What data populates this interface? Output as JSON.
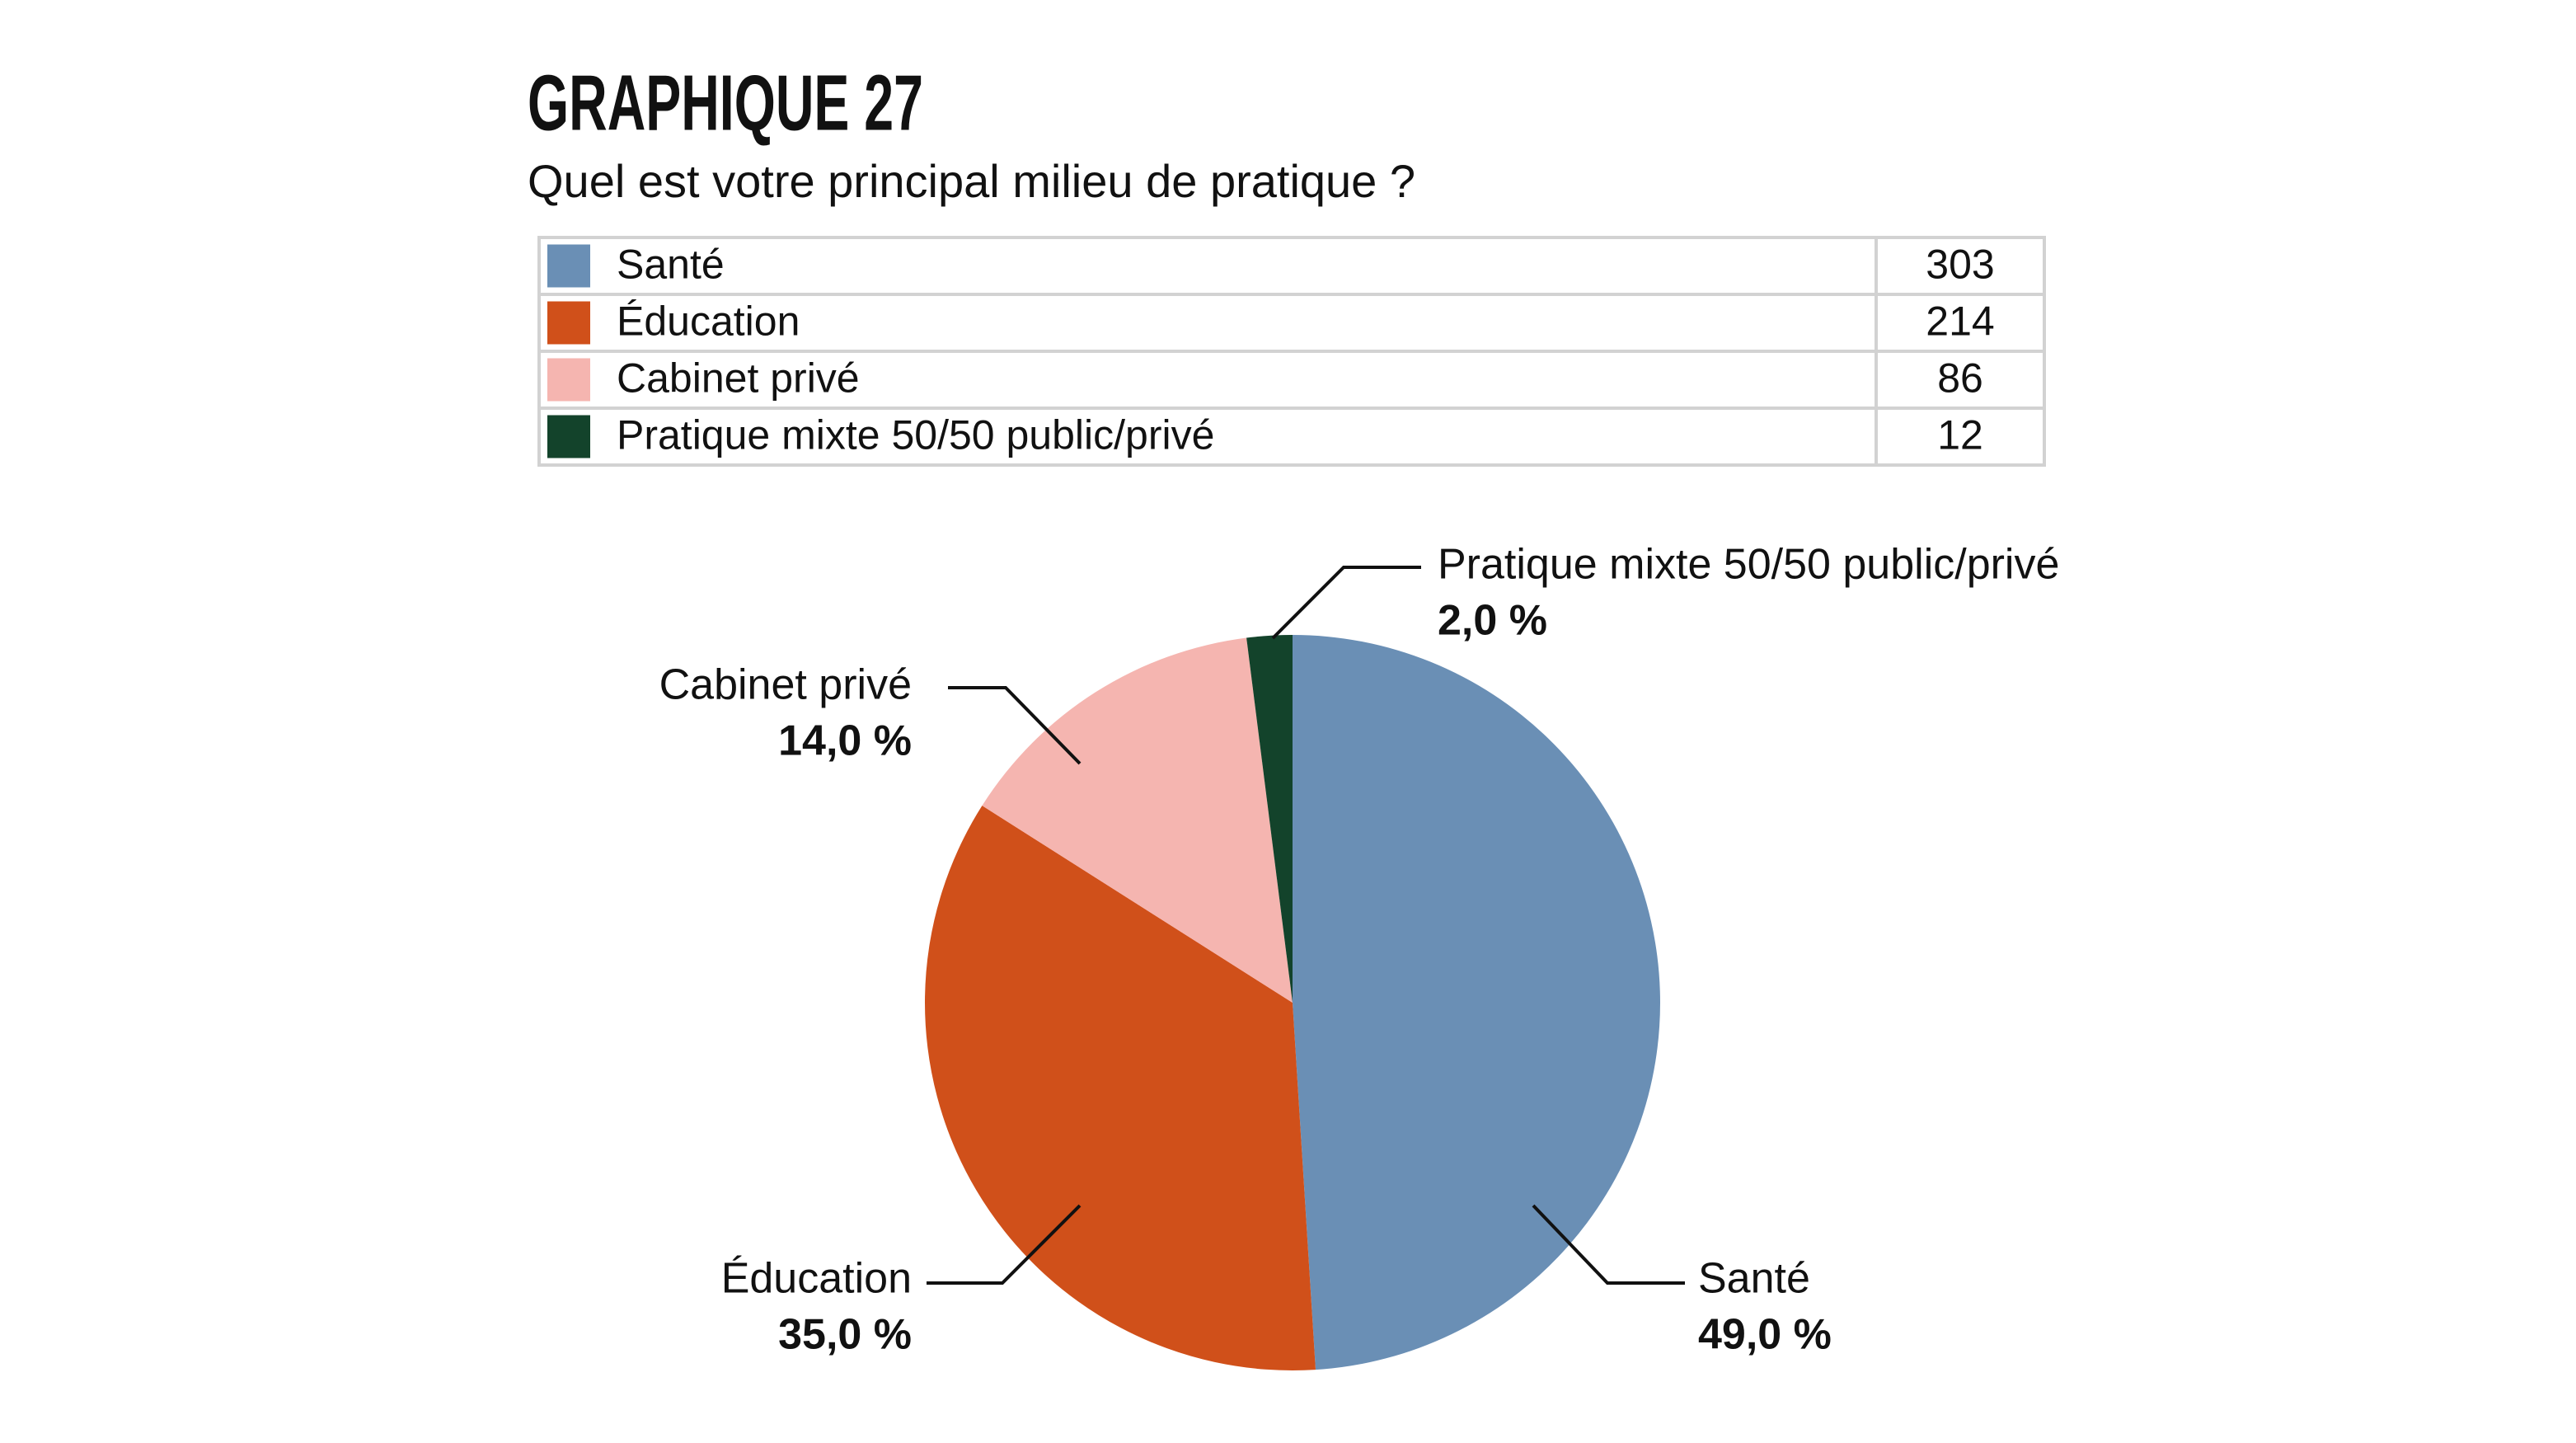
{
  "chart_data": {
    "type": "pie",
    "title": "GRAPHIQUE 27",
    "subtitle": "Quel est votre principal milieu de pratique ?",
    "categories": [
      "Santé",
      "Éducation",
      "Cabinet privé",
      "Pratique mixte 50/50 public/privé"
    ],
    "values": [
      49,
      35,
      14,
      2
    ],
    "value_labels": [
      "49,0 %",
      "35,0 %",
      "14,0 %",
      "2,0 %"
    ],
    "counts": [
      303,
      214,
      86,
      12
    ],
    "colors": [
      "#6a8fb5",
      "#d0501a",
      "#f5b5b0",
      "#13432b"
    ]
  }
}
